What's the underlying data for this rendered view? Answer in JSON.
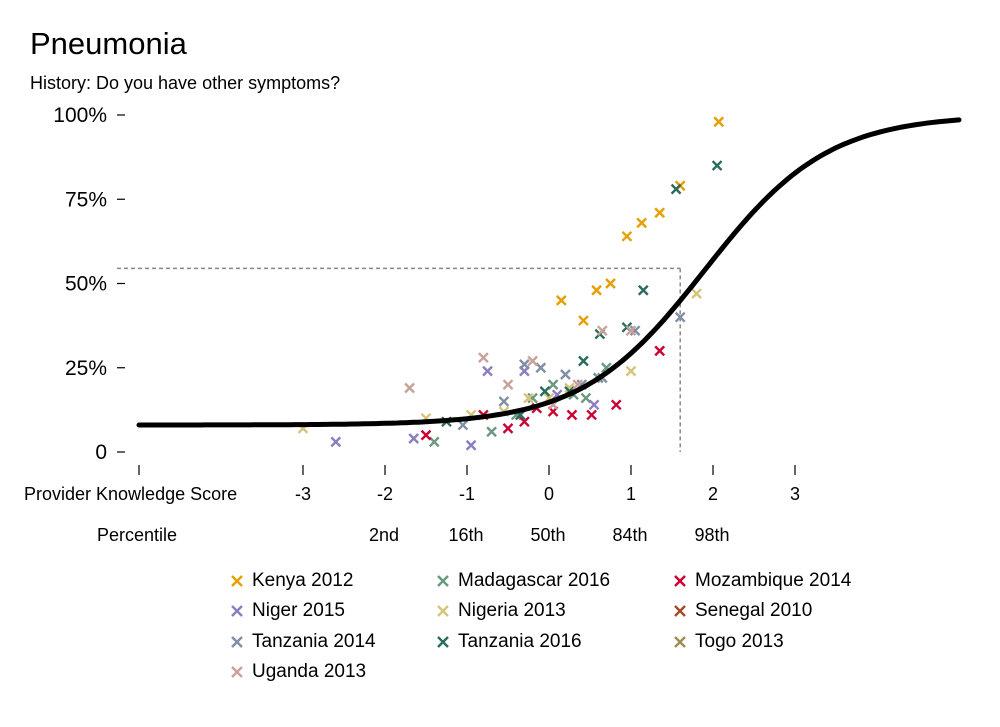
{
  "chart_data": {
    "type": "scatter",
    "title": "Pneumonia",
    "subtitle": "History: Do you have other symptoms?",
    "xlabel": "Provider Knowledge Score",
    "x_ticks": [
      -3,
      -2,
      -1,
      0,
      1,
      2,
      3
    ],
    "x_tick_labels": [
      "-3",
      "-2",
      "-1",
      "0",
      "1",
      "2",
      "3"
    ],
    "xlim": [
      -5,
      5
    ],
    "percentile_label": "Percentile",
    "percentile_ticks": [
      {
        "x": -2,
        "label": "2nd"
      },
      {
        "x": -1,
        "label": "16th"
      },
      {
        "x": 0,
        "label": "50th"
      },
      {
        "x": 1,
        "label": "84th"
      },
      {
        "x": 2,
        "label": "98th"
      }
    ],
    "ylim": [
      0,
      1
    ],
    "y_ticks": [
      0,
      0.25,
      0.5,
      0.75,
      1.0
    ],
    "y_tick_labels": [
      "0",
      "25%",
      "50%",
      "75%",
      "100%"
    ],
    "curve": {
      "type": "logistic",
      "floor": 0.08,
      "ceiling": 1.0,
      "midpoint": 1.9,
      "scale": 0.75,
      "x_range": [
        -5,
        5
      ]
    },
    "reference_point": {
      "x": 1.6,
      "y": 0.545
    },
    "legend_position": "bottom",
    "series": [
      {
        "name": "Kenya 2012",
        "color": "#E69F00",
        "points": [
          [
            0.15,
            0.45
          ],
          [
            0.42,
            0.39
          ],
          [
            0.58,
            0.48
          ],
          [
            0.75,
            0.5
          ],
          [
            0.95,
            0.64
          ],
          [
            1.13,
            0.68
          ],
          [
            1.35,
            0.71
          ],
          [
            1.6,
            0.79
          ],
          [
            2.07,
            0.98
          ]
        ]
      },
      {
        "name": "Madagascar 2016",
        "color": "#6B9980",
        "points": [
          [
            -1.4,
            0.03
          ],
          [
            -0.7,
            0.06
          ],
          [
            -0.4,
            0.11
          ],
          [
            -0.2,
            0.16
          ],
          [
            0.05,
            0.2
          ],
          [
            0.3,
            0.17
          ],
          [
            0.45,
            0.16
          ],
          [
            0.6,
            0.22
          ],
          [
            0.7,
            0.25
          ]
        ]
      },
      {
        "name": "Mozambique 2014",
        "color": "#CC0033",
        "points": [
          [
            -1.5,
            0.05
          ],
          [
            -0.8,
            0.11
          ],
          [
            -0.5,
            0.07
          ],
          [
            -0.3,
            0.09
          ],
          [
            -0.15,
            0.13
          ],
          [
            0.05,
            0.12
          ],
          [
            0.28,
            0.11
          ],
          [
            0.52,
            0.11
          ],
          [
            0.82,
            0.14
          ],
          [
            1.35,
            0.3
          ]
        ]
      },
      {
        "name": "Niger 2015",
        "color": "#8E7CC3",
        "points": [
          [
            -2.6,
            0.03
          ],
          [
            -1.65,
            0.04
          ],
          [
            -0.95,
            0.02
          ],
          [
            -0.75,
            0.24
          ],
          [
            -0.3,
            0.24
          ],
          [
            0.1,
            0.17
          ],
          [
            0.55,
            0.14
          ]
        ]
      },
      {
        "name": "Nigeria 2013",
        "color": "#D4C57A",
        "points": [
          [
            -3.0,
            0.07
          ],
          [
            -1.5,
            0.1
          ],
          [
            -0.95,
            0.11
          ],
          [
            -0.55,
            0.12
          ],
          [
            -0.25,
            0.16
          ],
          [
            0.0,
            0.16
          ],
          [
            0.25,
            0.19
          ],
          [
            1.0,
            0.24
          ],
          [
            1.8,
            0.47
          ]
        ]
      },
      {
        "name": "Senegal 2010",
        "color": "#A14A2A",
        "points": []
      },
      {
        "name": "Tanzania 2014",
        "color": "#7E8EA4",
        "points": [
          [
            -1.05,
            0.08
          ],
          [
            -0.55,
            0.15
          ],
          [
            -0.3,
            0.26
          ],
          [
            -0.1,
            0.25
          ],
          [
            0.2,
            0.23
          ],
          [
            0.4,
            0.2
          ],
          [
            0.65,
            0.22
          ],
          [
            1.05,
            0.36
          ],
          [
            1.6,
            0.4
          ]
        ]
      },
      {
        "name": "Tanzania 2016",
        "color": "#2A6B5E",
        "points": [
          [
            -1.25,
            0.09
          ],
          [
            -0.35,
            0.11
          ],
          [
            -0.05,
            0.18
          ],
          [
            0.25,
            0.18
          ],
          [
            0.42,
            0.27
          ],
          [
            0.62,
            0.35
          ],
          [
            0.95,
            0.37
          ],
          [
            1.15,
            0.48
          ],
          [
            1.55,
            0.78
          ],
          [
            2.05,
            0.85
          ]
        ]
      },
      {
        "name": "Togo 2013",
        "color": "#A08B55",
        "points": []
      },
      {
        "name": "Uganda 2013",
        "color": "#C9A19B",
        "points": [
          [
            -1.7,
            0.19
          ],
          [
            -0.8,
            0.28
          ],
          [
            -0.5,
            0.2
          ],
          [
            -0.2,
            0.27
          ],
          [
            0.05,
            0.14
          ],
          [
            0.35,
            0.2
          ],
          [
            0.65,
            0.36
          ],
          [
            1.0,
            0.36
          ]
        ]
      }
    ]
  }
}
